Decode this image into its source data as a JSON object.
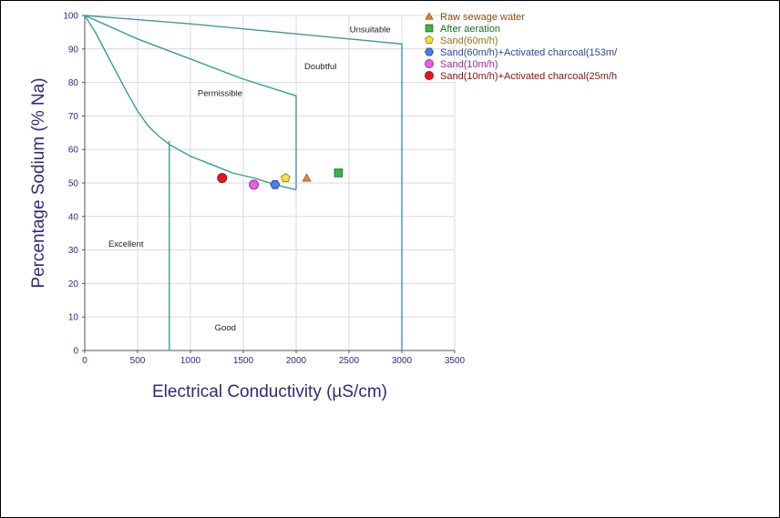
{
  "chart_data": {
    "type": "scatter",
    "title": "",
    "xlabel": "Electrical Conductivity (µS/cm)",
    "ylabel": "Percentage Sodium (% Na)",
    "xlim": [
      0,
      3500
    ],
    "ylim": [
      0,
      100
    ],
    "x_ticks": [
      "0",
      "500",
      "1000",
      "1500",
      "2000",
      "2500",
      "3000",
      "3500"
    ],
    "y_ticks": [
      "0",
      "10",
      "20",
      "30",
      "40",
      "50",
      "60",
      "70",
      "80",
      "90",
      "100"
    ],
    "grid": true,
    "legend_position": "top-right outside",
    "regions": [
      {
        "label": "Unsuitable",
        "x": 2700,
        "y": 95
      },
      {
        "label": "Doubtful",
        "x": 2230,
        "y": 84
      },
      {
        "label": "Permissible",
        "x": 1280,
        "y": 76
      },
      {
        "label": "Excellent",
        "x": 390,
        "y": 31
      },
      {
        "label": "Good",
        "x": 1330,
        "y": 6
      }
    ],
    "boundaries": [
      {
        "name": "excellent-permissible",
        "points": [
          [
            0,
            100
          ],
          [
            100,
            95
          ],
          [
            200,
            89
          ],
          [
            300,
            83
          ],
          [
            400,
            77
          ],
          [
            500,
            71.5
          ],
          [
            600,
            67
          ],
          [
            700,
            64
          ],
          [
            800,
            61.5
          ],
          [
            1000,
            58
          ],
          [
            1200,
            55.5
          ],
          [
            1400,
            53
          ],
          [
            1600,
            51.5
          ],
          [
            1800,
            49.5
          ],
          [
            2000,
            48
          ]
        ]
      },
      {
        "name": "permissible-doubtful",
        "points": [
          [
            0,
            100
          ],
          [
            500,
            93
          ],
          [
            1000,
            87
          ],
          [
            1500,
            81
          ],
          [
            2000,
            76
          ],
          [
            2000,
            48
          ]
        ]
      },
      {
        "name": "doubtful-unsuitable",
        "points": [
          [
            0,
            100
          ],
          [
            1000,
            97.5
          ],
          [
            2000,
            94.5
          ],
          [
            3000,
            91.5
          ],
          [
            3000,
            0
          ]
        ]
      },
      {
        "name": "excellent-good",
        "points": [
          [
            800,
            62.5
          ],
          [
            800,
            0
          ]
        ]
      }
    ],
    "series": [
      {
        "name": "Raw sewage water",
        "marker": "triangle",
        "color": "#e8883a",
        "stroke": "#a85a1a",
        "text_color": "#8a4a12",
        "points": [
          [
            2100,
            51.5
          ]
        ]
      },
      {
        "name": "After aeration",
        "marker": "square",
        "color": "#3cb44b",
        "stroke": "#1e7a2a",
        "text_color": "#1e6a2a",
        "points": [
          [
            2400,
            53
          ]
        ]
      },
      {
        "name": "Sand(60m/h)",
        "marker": "pentagon",
        "color": "#f5e04a",
        "stroke": "#a08a10",
        "text_color": "#8a7a10",
        "points": [
          [
            1900,
            51.5
          ]
        ]
      },
      {
        "name": "Sand(60m/h)+Activated charcoal(153m/",
        "marker": "hexagon",
        "color": "#4a7ee8",
        "stroke": "#2a4ea8",
        "text_color": "#2a4a9a",
        "points": [
          [
            1800,
            49.5
          ]
        ]
      },
      {
        "name": "Sand(10m/h)",
        "marker": "circle",
        "color": "#e860e0",
        "stroke": "#a030a0",
        "text_color": "#9a2a9a",
        "points": [
          [
            1600,
            49.5
          ]
        ]
      },
      {
        "name": "Sand(10m/h)+Activated charcoal(25m/h",
        "marker": "circle",
        "color": "#e01a1a",
        "stroke": "#a01010",
        "text_color": "#8a1010",
        "points": [
          [
            1300,
            51.5
          ]
        ]
      }
    ]
  }
}
